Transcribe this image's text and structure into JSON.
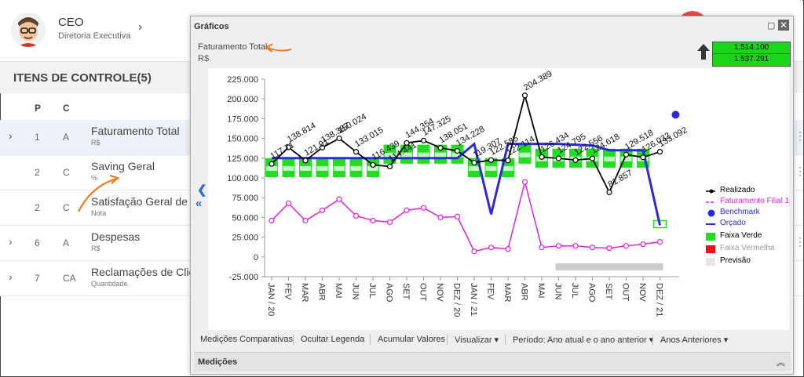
{
  "user": {
    "name": "CEO",
    "role": "Diretoria Executiva"
  },
  "section_title": "ITENS DE CONTROLE(5)",
  "columns": {
    "p": "P",
    "c": "C"
  },
  "rows": [
    {
      "p": "1",
      "c": "A",
      "name": "Faturamento Total",
      "unit": "R$"
    },
    {
      "p": "2",
      "c": "C",
      "name": "Saving Geral",
      "unit": "%"
    },
    {
      "p": "2",
      "c": "C",
      "name": "Satisfação Geral de C",
      "unit": "Nota"
    },
    {
      "p": "6",
      "c": "A",
      "name": "Despesas",
      "unit": "R$"
    },
    {
      "p": "7",
      "c": "CA",
      "name": "Reclamações de Clier",
      "unit": "Quantidade"
    }
  ],
  "modal": {
    "title": "Gráficos",
    "indicator": "Faturamento Total",
    "unit": "R$",
    "value1": "1.514.100",
    "value2": "1.537.291",
    "toolbar": {
      "btn1": "Medições Comparativas",
      "btn2": "Ocultar Legenda",
      "btn3": "Acumular Valores",
      "btn4": "Visualizar",
      "btn5": "Período: Ano atual e o ano anterior",
      "btn6": "Anos Anteriores"
    },
    "medicoes": "Medições"
  },
  "chart_data": {
    "type": "line",
    "categories": [
      "JAN / 20",
      "FEV",
      "MAR",
      "ABR",
      "MAI",
      "JUN",
      "JUL",
      "AGO",
      "SET",
      "OUT",
      "NOV",
      "DEZ / 20",
      "JAN / 21",
      "FEV",
      "MAR",
      "ABR",
      "MAI",
      "JUN",
      "JUL",
      "AGO",
      "SET",
      "OUT",
      "NOV",
      "DEZ / 21"
    ],
    "ylim": [
      -25000,
      225000
    ],
    "ytick_labels": [
      "-25.000",
      "0",
      "25.000",
      "50.000",
      "75.000",
      "100.000",
      "125.000",
      "150.000",
      "175.000",
      "200.000",
      "225.000"
    ],
    "series": [
      {
        "name": "Realizado",
        "color": "#000000",
        "values": [
          117710,
          138814,
          121910,
          138387,
          150024,
          133015,
          116439,
          114441,
          144354,
          147325,
          138051,
          134228,
          119307,
          122585,
          122114,
          204389,
          126434,
          124795,
          122556,
          124618,
          81857,
          129518,
          126032,
          133092
        ],
        "labels": [
          "117.71",
          "138.814",
          "121.91",
          "138.387",
          "150.024",
          "133.015",
          "116.439",
          "114.441",
          "144.354",
          "147.325",
          "138.051",
          "134.228",
          "119.307",
          "122.585",
          "122.114",
          "204.389",
          "126.434",
          "124.795",
          "122.556",
          "124.618",
          "81.857",
          "129.518",
          "126.032",
          "133.092"
        ]
      },
      {
        "name": "Faturamento Filial 1",
        "color": "#e020e0",
        "values": [
          46000,
          68000,
          46000,
          59000,
          73000,
          52000,
          46000,
          44000,
          59000,
          62000,
          50000,
          51000,
          7000,
          12000,
          10000,
          95000,
          12000,
          14000,
          14000,
          12000,
          11000,
          14000,
          16000,
          19000
        ]
      },
      {
        "name": "Orçado",
        "color": "#2a2ae0",
        "values": [
          125000,
          125000,
          125000,
          125000,
          125000,
          125000,
          125000,
          125000,
          125000,
          125000,
          125000,
          125000,
          143000,
          54000,
          143000,
          143000,
          143000,
          143000,
          142000,
          141000,
          135000,
          135000,
          135000,
          40000
        ]
      }
    ],
    "benchmark": {
      "name": "Benchmark",
      "value": 180000,
      "color": "#2a2ae0"
    },
    "faixa_verde": {
      "name": "Faixa Verde",
      "color": "#22dd22",
      "values": [
        113000,
        113000,
        113000,
        113000,
        113000,
        113000,
        113000,
        130000,
        130000,
        130000,
        130000,
        130000,
        113000,
        113000,
        113000,
        130000,
        125000,
        125000,
        125000,
        125000,
        125000,
        125000,
        125000,
        40000
      ]
    },
    "faixa_vermelha": {
      "name": "Faixa Vermelha",
      "color": "#ee1111"
    },
    "previsao": {
      "name": "Previsão",
      "color": "#cccccc"
    },
    "legend_position": "right"
  }
}
